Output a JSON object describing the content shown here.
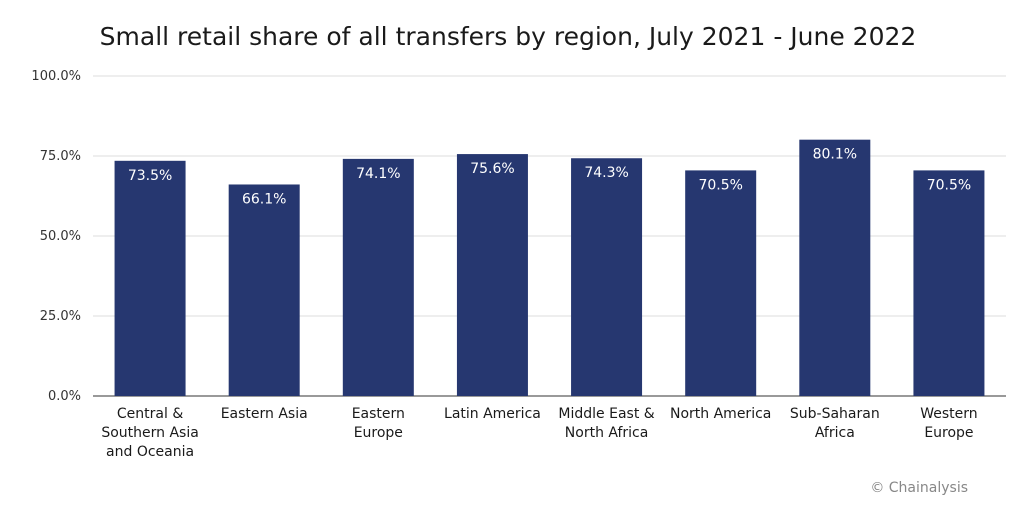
{
  "chart_data": {
    "type": "bar",
    "title": "Small retail share of all transfers by region, July 2021 - June 2022",
    "categories": [
      [
        "Central &",
        "Southern Asia",
        "and Oceania"
      ],
      [
        "Eastern Asia"
      ],
      [
        "Eastern",
        "Europe"
      ],
      [
        "Latin America"
      ],
      [
        "Middle East &",
        "North Africa"
      ],
      [
        "North America"
      ],
      [
        "Sub-Saharan",
        "Africa"
      ],
      [
        "Western",
        "Europe"
      ]
    ],
    "values": [
      73.5,
      66.1,
      74.1,
      75.6,
      74.3,
      70.5,
      80.1,
      70.5
    ],
    "data_labels": [
      "73.5%",
      "66.1%",
      "74.1%",
      "75.6%",
      "74.3%",
      "70.5%",
      "80.1%",
      "70.5%"
    ],
    "yticks": [
      0,
      25,
      50,
      75,
      100
    ],
    "ytick_labels": [
      "0.0%",
      "25.0%",
      "50.0%",
      "75.0%",
      "100.0%"
    ],
    "ylim": [
      0,
      100
    ],
    "grid": true,
    "bar_color": "#263770",
    "gridline_color": "#dddddd"
  },
  "credit": "© Chainalysis"
}
